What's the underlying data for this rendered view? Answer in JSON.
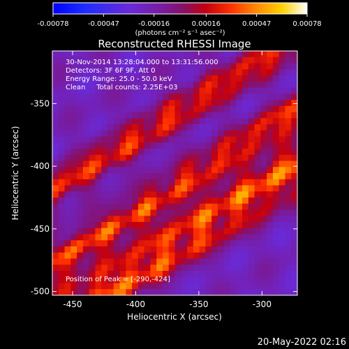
{
  "colorbar": {
    "tick_labels": [
      "-0.00078",
      "-0.00047",
      "-0.00016",
      "0.00016",
      "0.00047",
      "0.00078"
    ],
    "ticks": [
      -0.00078,
      -0.00047,
      -0.00016,
      0.00016,
      0.00047,
      0.00078
    ],
    "range": [
      -0.00078,
      0.00078
    ],
    "units": "(photons cm⁻² s⁻¹ asec⁻²)"
  },
  "info": {
    "time": "30-Nov-2014 13:28:04.000 to 13:31:56.000",
    "detectors": "Detectors: 3F 6F 9F, Att 0",
    "energy": "Energy Range: 25.0 - 50.0 keV",
    "clean": "Clean     Total counts: 2.25E+03",
    "peak": "Position of Peak = [-290,-424]"
  },
  "footer_timestamp": "20-May-2022 02:16",
  "chart_data": {
    "type": "heatmap",
    "title": "Reconstructed RHESSI Image",
    "xlabel": "Heliocentric X (arcsec)",
    "ylabel": "Heliocentric Y (arcsec)",
    "xlim": [
      -466,
      -272
    ],
    "ylim": [
      -503,
      -308
    ],
    "xticks": [
      -450,
      -400,
      -350,
      -300
    ],
    "yticks": [
      -350,
      -400,
      -450,
      -500
    ],
    "xtick_labels": [
      "-450",
      "-400",
      "-350",
      "-300"
    ],
    "ytick_labels": [
      "-350",
      "-400",
      "-450",
      "-500"
    ],
    "colormap": "blue-purple-red-orange-yellow-white",
    "grid": false,
    "peak": [
      -290,
      -424
    ],
    "bands": [
      {
        "a": -0.62,
        "b": 1.1,
        "width": 0.11,
        "amp": 0.95
      },
      {
        "a": -0.62,
        "b": 0.87,
        "width": 0.075,
        "amp": 0.85
      },
      {
        "a": -0.62,
        "b": 0.57,
        "width": 0.09,
        "amp": 0.7
      }
    ]
  }
}
